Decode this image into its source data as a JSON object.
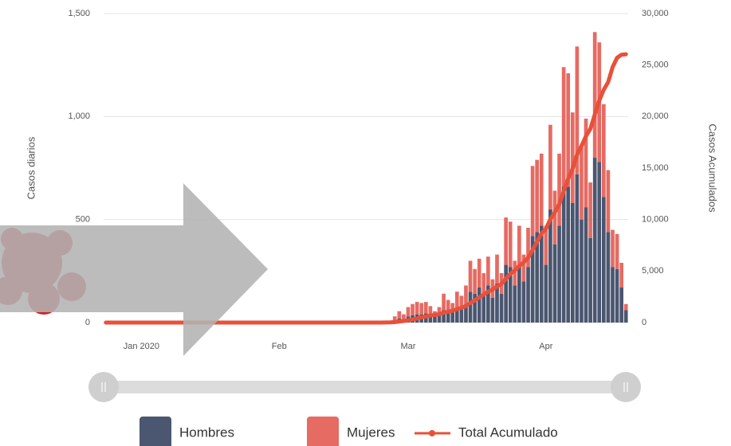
{
  "chart_data": {
    "type": "bar",
    "stacked": true,
    "ylabel": "Casos diarios",
    "y2label": "Casos Acumulados",
    "categories": [
      null,
      null,
      null,
      null,
      null,
      null,
      null,
      null,
      "Jan 2020",
      null,
      null,
      null,
      null,
      null,
      null,
      null,
      null,
      null,
      null,
      null,
      null,
      null,
      null,
      null,
      null,
      null,
      null,
      null,
      null,
      null,
      null,
      null,
      null,
      null,
      null,
      null,
      null,
      null,
      null,
      "Feb",
      null,
      null,
      null,
      null,
      null,
      null,
      null,
      null,
      null,
      null,
      null,
      null,
      null,
      null,
      null,
      null,
      null,
      null,
      null,
      null,
      null,
      null,
      null,
      null,
      null,
      null,
      null,
      null,
      "Mar",
      null,
      null,
      null,
      null,
      null,
      null,
      null,
      null,
      null,
      null,
      null,
      null,
      null,
      null,
      null,
      null,
      null,
      null,
      null,
      null,
      null,
      null,
      null,
      null,
      null,
      null,
      null,
      null,
      null,
      null,
      "Apr",
      null,
      null,
      null,
      null,
      null,
      null,
      null,
      null,
      null,
      null,
      null,
      null,
      null,
      null,
      null,
      null,
      null,
      null
    ],
    "series": [
      {
        "name": "Hombres",
        "color": "#4b5670",
        "values": [
          0,
          0,
          0,
          0,
          0,
          0,
          0,
          0,
          0,
          0,
          0,
          0,
          0,
          0,
          0,
          0,
          0,
          0,
          0,
          0,
          0,
          0,
          0,
          0,
          0,
          0,
          0,
          0,
          0,
          0,
          0,
          0,
          0,
          0,
          0,
          0,
          0,
          0,
          0,
          0,
          0,
          0,
          0,
          0,
          0,
          0,
          0,
          0,
          0,
          0,
          0,
          0,
          0,
          0,
          0,
          0,
          0,
          0,
          0,
          0,
          0,
          0,
          0,
          0,
          0,
          10,
          20,
          15,
          30,
          35,
          40,
          40,
          45,
          40,
          30,
          40,
          60,
          55,
          50,
          70,
          70,
          90,
          150,
          140,
          170,
          140,
          180,
          120,
          190,
          140,
          280,
          270,
          180,
          270,
          200,
          270,
          420,
          440,
          470,
          280,
          550,
          380,
          470,
          660,
          660,
          580,
          720,
          500,
          560,
          410,
          800,
          780,
          610,
          440,
          270,
          260,
          170,
          60
        ]
      },
      {
        "name": "Mujeres",
        "color": "#e56b63",
        "values": [
          0,
          0,
          0,
          0,
          0,
          0,
          0,
          0,
          0,
          0,
          0,
          0,
          0,
          0,
          0,
          0,
          0,
          0,
          0,
          0,
          0,
          0,
          0,
          0,
          0,
          0,
          0,
          0,
          0,
          0,
          0,
          0,
          0,
          0,
          0,
          0,
          0,
          0,
          0,
          0,
          0,
          0,
          0,
          0,
          0,
          0,
          0,
          0,
          0,
          0,
          0,
          0,
          0,
          0,
          0,
          0,
          0,
          0,
          0,
          0,
          0,
          0,
          0,
          0,
          0,
          20,
          35,
          25,
          45,
          55,
          60,
          55,
          55,
          40,
          25,
          35,
          80,
          55,
          45,
          80,
          60,
          90,
          150,
          120,
          140,
          100,
          140,
          90,
          140,
          100,
          230,
          220,
          120,
          200,
          130,
          190,
          340,
          350,
          350,
          190,
          410,
          260,
          350,
          580,
          550,
          440,
          620,
          350,
          430,
          270,
          610,
          580,
          450,
          300,
          180,
          170,
          120,
          30
        ]
      },
      {
        "name": "Total Acumulado",
        "color": "#e8503a",
        "type": "line",
        "axis": "y2",
        "values": [
          0,
          0,
          0,
          0,
          0,
          0,
          0,
          0,
          0,
          0,
          0,
          0,
          0,
          0,
          0,
          0,
          0,
          0,
          0,
          0,
          0,
          0,
          0,
          0,
          0,
          0,
          0,
          0,
          0,
          0,
          0,
          0,
          0,
          0,
          0,
          0,
          0,
          0,
          0,
          0,
          0,
          0,
          0,
          0,
          0,
          0,
          0,
          0,
          0,
          0,
          0,
          0,
          0,
          0,
          0,
          0,
          0,
          0,
          0,
          0,
          0,
          0,
          0,
          10,
          20,
          50,
          100,
          150,
          220,
          300,
          400,
          500,
          600,
          680,
          740,
          810,
          950,
          1060,
          1150,
          1300,
          1430,
          1610,
          1900,
          2150,
          2450,
          2700,
          3000,
          3200,
          3500,
          3750,
          4250,
          4750,
          5050,
          5500,
          5850,
          6300,
          7050,
          7850,
          8650,
          9100,
          10050,
          10700,
          11500,
          12750,
          13950,
          14950,
          16300,
          17150,
          18100,
          18800,
          20200,
          21550,
          22600,
          23350,
          24800,
          25700,
          26000,
          26050
        ]
      }
    ],
    "ylim": [
      0,
      1500
    ],
    "yticks": [
      0,
      500,
      {
        "value": 1000,
        "label": "1,000"
      },
      {
        "value": 1500,
        "label": "1,500"
      }
    ],
    "y2lim": [
      0,
      30000
    ],
    "y2ticks": [
      0,
      {
        "value": 5000,
        "label": "5,000"
      },
      {
        "value": 10000,
        "label": "10,000"
      },
      {
        "value": 15000,
        "label": "15,000"
      },
      {
        "value": 20000,
        "label": "20,000"
      },
      {
        "value": 25000,
        "label": "25,000"
      },
      {
        "value": 30000,
        "label": "30,000"
      }
    ],
    "grid": true
  }
}
